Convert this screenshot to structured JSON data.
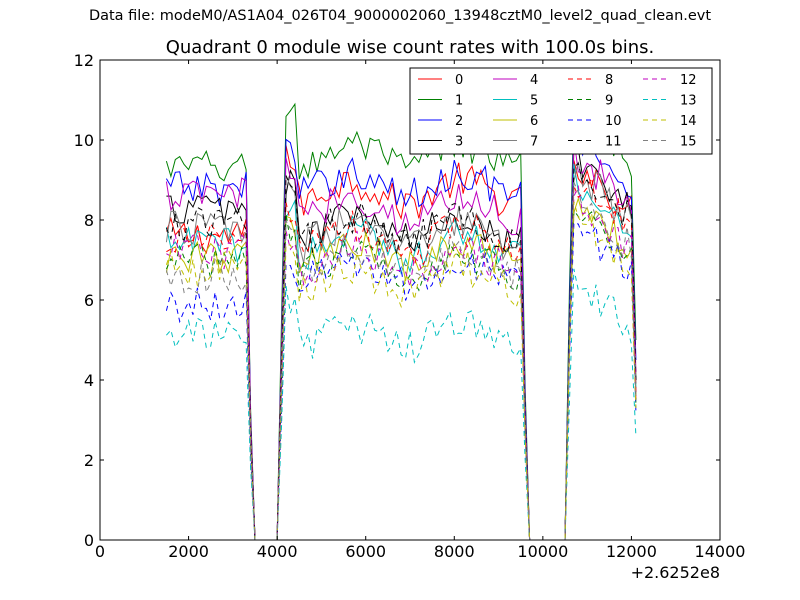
{
  "figure": {
    "supertitle": "Data file: modeM0/AS1A04_026T04_9000002060_13948cztM0_level2_quad_clean.evt"
  },
  "chart_data": {
    "type": "line",
    "title": "Quadrant 0 module wise count rates with 100.0s bins.",
    "xlabel": "",
    "ylabel": "",
    "x_offset_label": "+2.6252e8",
    "xlim": [
      0,
      14000
    ],
    "ylim": [
      0,
      12
    ],
    "xticks": [
      0,
      2000,
      4000,
      6000,
      8000,
      10000,
      12000,
      14000
    ],
    "yticks": [
      0,
      2,
      4,
      6,
      8,
      10,
      12
    ],
    "grid": false,
    "legend_placement": "top-right",
    "legend_columns": 4,
    "x_note": "bins every 100 s from 1500 to 12100 (x in units above the +2.6252e8 offset); rates drop to 0 in the data gaps",
    "x": {
      "start": 1500,
      "stop": 12100,
      "step": 100
    },
    "gaps": [
      [
        3500,
        4000
      ],
      [
        9650,
        10500
      ]
    ],
    "gap_edges": [
      3500,
      4000,
      9650,
      10500,
      12100
    ],
    "series": [
      {
        "name": "0",
        "color": "#ff0000",
        "dash": "solid",
        "levels": [
          7.6,
          9.1,
          8.7,
          8.9
        ],
        "end": 3.5
      },
      {
        "name": "1",
        "color": "#008000",
        "dash": "solid",
        "levels": [
          9.3,
          10.3,
          9.6,
          10.2
        ],
        "end": 5.0
      },
      {
        "name": "2",
        "color": "#0000ff",
        "dash": "solid",
        "levels": [
          8.8,
          9.3,
          8.9,
          9.6
        ],
        "end": 4.5
      },
      {
        "name": "3",
        "color": "#000000",
        "dash": "solid",
        "levels": [
          8.3,
          8.4,
          7.8,
          9.0
        ],
        "end": 4.0
      },
      {
        "name": "4",
        "color": "#bf00bf",
        "dash": "solid",
        "levels": [
          8.6,
          8.9,
          8.3,
          9.1
        ],
        "end": 4.2
      },
      {
        "name": "5",
        "color": "#00bfbf",
        "dash": "solid",
        "levels": [
          7.4,
          7.9,
          7.4,
          8.4
        ],
        "end": 3.8
      },
      {
        "name": "6",
        "color": "#bfbf00",
        "dash": "solid",
        "levels": [
          7.1,
          7.5,
          7.1,
          8.0
        ],
        "end": 3.6
      },
      {
        "name": "7",
        "color": "#808080",
        "dash": "solid",
        "levels": [
          7.8,
          8.1,
          7.6,
          8.7
        ],
        "end": 3.9
      },
      {
        "name": "8",
        "color": "#ff0000",
        "dash": "dashed",
        "levels": [
          7.5,
          7.9,
          7.5,
          8.5
        ],
        "end": 3.7
      },
      {
        "name": "9",
        "color": "#008000",
        "dash": "dashed",
        "levels": [
          7.0,
          7.2,
          6.9,
          7.8
        ],
        "end": 3.4
      },
      {
        "name": "10",
        "color": "#0000ff",
        "dash": "dashed",
        "levels": [
          5.9,
          6.4,
          6.7,
          7.4
        ],
        "end": 3.2
      },
      {
        "name": "11",
        "color": "#000000",
        "dash": "dashed",
        "levels": [
          7.9,
          8.2,
          7.8,
          8.7
        ],
        "end": 4.0
      },
      {
        "name": "12",
        "color": "#bf00bf",
        "dash": "dashed",
        "levels": [
          7.2,
          7.3,
          7.0,
          7.9
        ],
        "end": 3.6
      },
      {
        "name": "13",
        "color": "#00bfbf",
        "dash": "dashed",
        "levels": [
          5.1,
          5.5,
          5.1,
          6.0
        ],
        "end": 2.6
      },
      {
        "name": "14",
        "color": "#bfbf00",
        "dash": "dashed",
        "levels": [
          6.8,
          7.0,
          6.5,
          7.6
        ],
        "end": 3.3
      },
      {
        "name": "15",
        "color": "#808080",
        "dash": "dashed",
        "levels": [
          6.6,
          7.2,
          7.0,
          8.0
        ],
        "end": 3.5
      }
    ]
  }
}
